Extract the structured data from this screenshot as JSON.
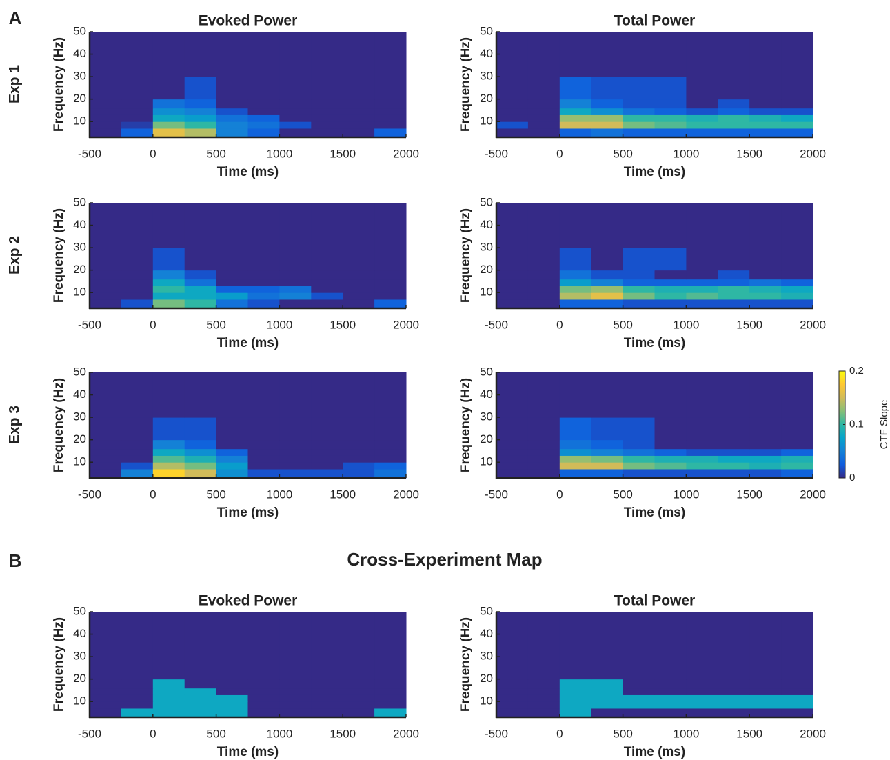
{
  "figure": {
    "panel_labels": [
      "A",
      "B"
    ],
    "row_labels": [
      "Exp 1",
      "Exp 2",
      "Exp 3"
    ],
    "section_title": "Cross-Experiment Map"
  },
  "chart_data": [
    {
      "type": "heatmap",
      "title": "Evoked Power",
      "xlabel": "Time (ms)",
      "ylabel": "Frequency (Hz)",
      "xlim": [
        -500,
        2000
      ],
      "ylim": [
        3,
        50
      ],
      "xticks": [
        -500,
        0,
        500,
        1000,
        1500,
        2000
      ],
      "yticks": [
        10,
        20,
        30,
        40,
        50
      ],
      "xbins": [
        -500,
        -250,
        0,
        250,
        500,
        750,
        1000,
        1250,
        1500,
        1750,
        2000
      ],
      "ybins": [
        3,
        7,
        10,
        13,
        16,
        20,
        30,
        50
      ],
      "z": [
        [
          0,
          0.03,
          0.16,
          0.14,
          0.05,
          0.03,
          0,
          0,
          0,
          0.03
        ],
        [
          0,
          0.01,
          0.12,
          0.1,
          0.05,
          0.04,
          0.02,
          0,
          0,
          0
        ],
        [
          0,
          0,
          0.08,
          0.07,
          0.04,
          0.03,
          0,
          0,
          0,
          0
        ],
        [
          0,
          0,
          0.06,
          0.05,
          0.02,
          0,
          0,
          0,
          0,
          0
        ],
        [
          0,
          0,
          0.04,
          0.03,
          0,
          0,
          0,
          0,
          0,
          0
        ],
        [
          0,
          0,
          0,
          0.02,
          0,
          0,
          0,
          0,
          0,
          0
        ],
        [
          0,
          0,
          0,
          0,
          0,
          0,
          0,
          0,
          0,
          0
        ]
      ]
    },
    {
      "type": "heatmap",
      "title": "Total Power",
      "xlabel": "Time (ms)",
      "ylabel": "Frequency (Hz)",
      "xlim": [
        -500,
        2000
      ],
      "ylim": [
        3,
        50
      ],
      "xticks": [
        -500,
        0,
        500,
        1000,
        1500,
        2000
      ],
      "yticks": [
        10,
        20,
        30,
        40,
        50
      ],
      "xbins": [
        -500,
        -250,
        0,
        250,
        500,
        750,
        1000,
        1250,
        1500,
        1750,
        2000
      ],
      "ybins": [
        3,
        7,
        10,
        13,
        16,
        20,
        30,
        50
      ],
      "z": [
        [
          0,
          0,
          0.03,
          0.04,
          0.03,
          0.03,
          0.03,
          0.03,
          0.03,
          0.03
        ],
        [
          0.02,
          0,
          0.15,
          0.15,
          0.12,
          0.11,
          0.1,
          0.1,
          0.1,
          0.1
        ],
        [
          0,
          0,
          0.13,
          0.13,
          0.1,
          0.1,
          0.09,
          0.1,
          0.09,
          0.08
        ],
        [
          0,
          0,
          0.08,
          0.06,
          0.04,
          0.03,
          0.02,
          0.03,
          0.02,
          0.02
        ],
        [
          0,
          0,
          0.05,
          0.03,
          0.02,
          0.02,
          0,
          0.02,
          0,
          0
        ],
        [
          0,
          0,
          0.03,
          0.02,
          0.02,
          0.02,
          0,
          0,
          0,
          0
        ],
        [
          0,
          0,
          0,
          0,
          0,
          0,
          0,
          0,
          0,
          0
        ]
      ]
    },
    {
      "type": "heatmap",
      "xlabel": "Time (ms)",
      "ylabel": "Frequency (Hz)",
      "xlim": [
        -500,
        2000
      ],
      "ylim": [
        3,
        50
      ],
      "xticks": [
        -500,
        0,
        500,
        1000,
        1500,
        2000
      ],
      "yticks": [
        10,
        20,
        30,
        40,
        50
      ],
      "xbins": [
        -500,
        -250,
        0,
        250,
        500,
        750,
        1000,
        1250,
        1500,
        1750,
        2000
      ],
      "ybins": [
        3,
        7,
        10,
        13,
        16,
        20,
        30,
        50
      ],
      "z": [
        [
          0,
          0.02,
          0.12,
          0.1,
          0.04,
          0.02,
          0,
          0,
          0,
          0.03
        ],
        [
          0,
          0,
          0.08,
          0.08,
          0.07,
          0.04,
          0.05,
          0.02,
          0,
          0
        ],
        [
          0,
          0,
          0.1,
          0.08,
          0.03,
          0.03,
          0.04,
          0,
          0,
          0
        ],
        [
          0,
          0,
          0.08,
          0.04,
          0,
          0,
          0,
          0,
          0,
          0
        ],
        [
          0,
          0,
          0.05,
          0.02,
          0,
          0,
          0,
          0,
          0,
          0
        ],
        [
          0,
          0,
          0.02,
          0,
          0,
          0,
          0,
          0,
          0,
          0
        ],
        [
          0,
          0,
          0,
          0,
          0,
          0,
          0,
          0,
          0,
          0
        ]
      ]
    },
    {
      "type": "heatmap",
      "xlabel": "Time (ms)",
      "ylabel": "Frequency (Hz)",
      "xlim": [
        -500,
        2000
      ],
      "ylim": [
        3,
        50
      ],
      "xticks": [
        -500,
        0,
        500,
        1000,
        1500,
        2000
      ],
      "yticks": [
        10,
        20,
        30,
        40,
        50
      ],
      "xbins": [
        -500,
        -250,
        0,
        250,
        500,
        750,
        1000,
        1250,
        1500,
        1750,
        2000
      ],
      "ybins": [
        3,
        7,
        10,
        13,
        16,
        20,
        30,
        50
      ],
      "z": [
        [
          0,
          0,
          0.03,
          0.03,
          0.02,
          0.02,
          0.02,
          0.02,
          0.02,
          0.02
        ],
        [
          0,
          0,
          0.14,
          0.16,
          0.12,
          0.1,
          0.11,
          0.1,
          0.1,
          0.09
        ],
        [
          0,
          0,
          0.12,
          0.13,
          0.1,
          0.09,
          0.09,
          0.1,
          0.09,
          0.08
        ],
        [
          0,
          0,
          0.07,
          0.05,
          0.03,
          0.03,
          0.03,
          0.03,
          0.04,
          0.03
        ],
        [
          0,
          0,
          0.04,
          0.02,
          0.02,
          0,
          0,
          0.02,
          0,
          0
        ],
        [
          0,
          0,
          0.02,
          0,
          0.02,
          0.02,
          0,
          0,
          0,
          0
        ],
        [
          0,
          0,
          0,
          0,
          0,
          0,
          0,
          0,
          0,
          0
        ]
      ]
    },
    {
      "type": "heatmap",
      "xlabel": "Time (ms)",
      "ylabel": "Frequency (Hz)",
      "xlim": [
        -500,
        2000
      ],
      "ylim": [
        3,
        50
      ],
      "xticks": [
        -500,
        0,
        500,
        1000,
        1500,
        2000
      ],
      "yticks": [
        10,
        20,
        30,
        40,
        50
      ],
      "xbins": [
        -500,
        -250,
        0,
        250,
        500,
        750,
        1000,
        1250,
        1500,
        1750,
        2000
      ],
      "ybins": [
        3,
        7,
        10,
        13,
        16,
        20,
        30,
        50
      ],
      "z": [
        [
          0,
          0.05,
          0.18,
          0.15,
          0.06,
          0.02,
          0.02,
          0.02,
          0.02,
          0.04
        ],
        [
          0,
          0.02,
          0.14,
          0.12,
          0.07,
          0,
          0,
          0,
          0.02,
          0.03
        ],
        [
          0,
          0,
          0.11,
          0.09,
          0.05,
          0,
          0,
          0,
          0,
          0
        ],
        [
          0,
          0,
          0.08,
          0.06,
          0.03,
          0,
          0,
          0,
          0,
          0
        ],
        [
          0,
          0,
          0.05,
          0.03,
          0,
          0,
          0,
          0,
          0,
          0
        ],
        [
          0,
          0,
          0.02,
          0.02,
          0,
          0,
          0,
          0,
          0,
          0
        ],
        [
          0,
          0,
          0,
          0,
          0,
          0,
          0,
          0,
          0,
          0
        ]
      ]
    },
    {
      "type": "heatmap",
      "xlabel": "Time (ms)",
      "ylabel": "Frequency (Hz)",
      "xlim": [
        -500,
        2000
      ],
      "ylim": [
        3,
        50
      ],
      "xticks": [
        -500,
        0,
        500,
        1000,
        1500,
        2000
      ],
      "yticks": [
        10,
        20,
        30,
        40,
        50
      ],
      "xbins": [
        -500,
        -250,
        0,
        250,
        500,
        750,
        1000,
        1250,
        1500,
        1750,
        2000
      ],
      "ybins": [
        3,
        7,
        10,
        13,
        16,
        20,
        30,
        50
      ],
      "z": [
        [
          0,
          0,
          0.03,
          0.03,
          0.02,
          0.02,
          0.02,
          0.02,
          0.02,
          0.03
        ],
        [
          0,
          0,
          0.15,
          0.15,
          0.12,
          0.11,
          0.1,
          0.1,
          0.09,
          0.1
        ],
        [
          0,
          0,
          0.13,
          0.12,
          0.1,
          0.09,
          0.09,
          0.08,
          0.08,
          0.09
        ],
        [
          0,
          0,
          0.06,
          0.05,
          0.04,
          0.03,
          0.02,
          0.02,
          0.02,
          0.03
        ],
        [
          0,
          0,
          0.04,
          0.03,
          0.02,
          0,
          0,
          0,
          0,
          0
        ],
        [
          0,
          0,
          0.03,
          0.02,
          0.02,
          0,
          0,
          0,
          0,
          0
        ],
        [
          0,
          0,
          0,
          0,
          0,
          0,
          0,
          0,
          0,
          0
        ]
      ]
    },
    {
      "type": "heatmap",
      "title": "Evoked Power",
      "xlabel": "Time (ms)",
      "ylabel": "Frequency (Hz)",
      "xlim": [
        -500,
        2000
      ],
      "ylim": [
        3,
        50
      ],
      "xticks": [
        -500,
        0,
        500,
        1000,
        1500,
        2000
      ],
      "yticks": [
        10,
        20,
        30,
        40,
        50
      ],
      "xbins": [
        -500,
        -250,
        0,
        250,
        500,
        750,
        1000,
        1250,
        1500,
        1750,
        2000
      ],
      "ybins": [
        3,
        7,
        10,
        13,
        16,
        20,
        30,
        50
      ],
      "z": [
        [
          0,
          0.08,
          0.08,
          0.08,
          0.08,
          0,
          0,
          0,
          0,
          0.08
        ],
        [
          0,
          0,
          0.08,
          0.08,
          0.08,
          0,
          0,
          0,
          0,
          0
        ],
        [
          0,
          0,
          0.08,
          0.08,
          0.08,
          0,
          0,
          0,
          0,
          0
        ],
        [
          0,
          0,
          0.08,
          0.08,
          0,
          0,
          0,
          0,
          0,
          0
        ],
        [
          0,
          0,
          0.08,
          0,
          0,
          0,
          0,
          0,
          0,
          0
        ],
        [
          0,
          0,
          0,
          0,
          0,
          0,
          0,
          0,
          0,
          0
        ],
        [
          0,
          0,
          0,
          0,
          0,
          0,
          0,
          0,
          0,
          0
        ]
      ]
    },
    {
      "type": "heatmap",
      "title": "Total Power",
      "xlabel": "Time (ms)",
      "ylabel": "Frequency (Hz)",
      "xlim": [
        -500,
        2000
      ],
      "ylim": [
        3,
        50
      ],
      "xticks": [
        -500,
        0,
        500,
        1000,
        1500,
        2000
      ],
      "yticks": [
        10,
        20,
        30,
        40,
        50
      ],
      "xbins": [
        -500,
        -250,
        0,
        250,
        500,
        750,
        1000,
        1250,
        1500,
        1750,
        2000
      ],
      "ybins": [
        3,
        7,
        10,
        13,
        16,
        20,
        30,
        50
      ],
      "z": [
        [
          0,
          0,
          0.08,
          0,
          0,
          0,
          0,
          0,
          0,
          0
        ],
        [
          0,
          0,
          0.08,
          0.08,
          0.08,
          0.08,
          0.08,
          0.08,
          0.08,
          0.08
        ],
        [
          0,
          0,
          0.08,
          0.08,
          0.08,
          0.08,
          0.08,
          0.08,
          0.08,
          0.08
        ],
        [
          0,
          0,
          0.08,
          0.08,
          0,
          0,
          0,
          0,
          0,
          0
        ],
        [
          0,
          0,
          0.08,
          0.08,
          0,
          0,
          0,
          0,
          0,
          0
        ],
        [
          0,
          0,
          0,
          0,
          0,
          0,
          0,
          0,
          0,
          0
        ],
        [
          0,
          0,
          0,
          0,
          0,
          0,
          0,
          0,
          0,
          0
        ]
      ]
    },
    {
      "type": "colorbar",
      "label": "CTF Slope",
      "ylim": [
        0,
        0.2
      ],
      "yticks": [
        0,
        0.1,
        0.2
      ],
      "colormap": "parula"
    }
  ]
}
